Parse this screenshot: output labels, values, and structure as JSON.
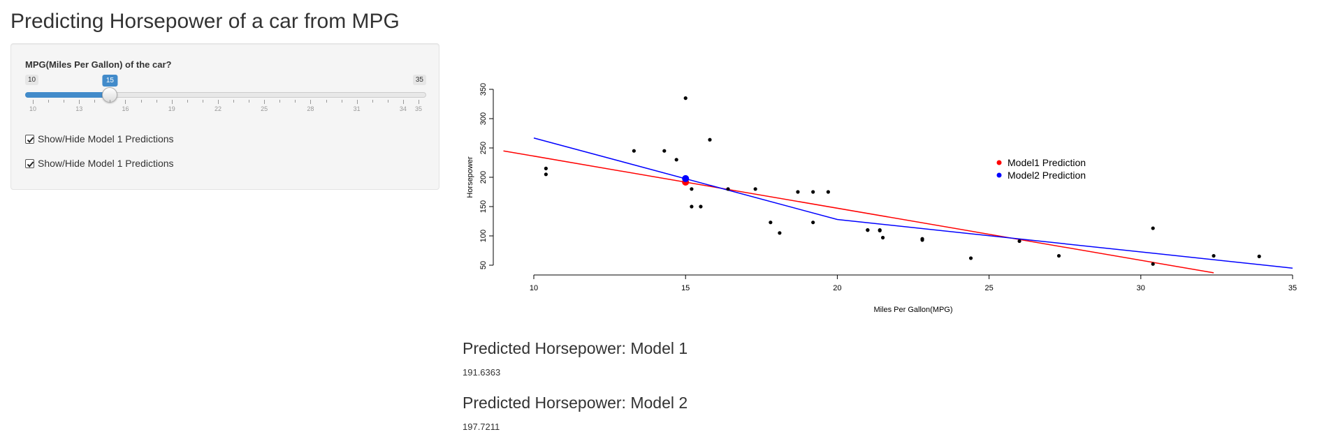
{
  "page": {
    "title": "Predicting Horsepower of a car from MPG"
  },
  "sidebar": {
    "slider": {
      "label": "MPG(Miles Per Gallon) of the car?",
      "min": 10,
      "max": 35,
      "value": 15,
      "min_label": "10",
      "max_label": "35",
      "value_label": "15",
      "tick_labels": [
        "10",
        "13",
        "16",
        "19",
        "22",
        "25",
        "28",
        "31",
        "34",
        "35"
      ],
      "accent_color": "#428bca"
    },
    "checkboxes": [
      {
        "label": "Show/Hide Model 1 Predictions",
        "checked": true
      },
      {
        "label": "Show/Hide Model 1 Predictions",
        "checked": true
      }
    ]
  },
  "chart_data": {
    "type": "scatter",
    "xlabel": "Miles Per Gallon(MPG)",
    "ylabel": "Horsepower",
    "xlim": [
      10,
      35
    ],
    "ylim": [
      50,
      350
    ],
    "x_ticks": [
      10,
      15,
      20,
      25,
      30,
      35
    ],
    "y_ticks": [
      50,
      100,
      150,
      200,
      250,
      300,
      350
    ],
    "points": [
      [
        21.0,
        110
      ],
      [
        21.0,
        110
      ],
      [
        22.8,
        93
      ],
      [
        21.4,
        110
      ],
      [
        18.7,
        175
      ],
      [
        18.1,
        105
      ],
      [
        14.3,
        245
      ],
      [
        24.4,
        62
      ],
      [
        22.8,
        95
      ],
      [
        19.2,
        123
      ],
      [
        17.8,
        123
      ],
      [
        16.4,
        180
      ],
      [
        17.3,
        180
      ],
      [
        15.2,
        180
      ],
      [
        10.4,
        205
      ],
      [
        10.4,
        215
      ],
      [
        14.7,
        230
      ],
      [
        32.4,
        66
      ],
      [
        30.4,
        52
      ],
      [
        33.9,
        65
      ],
      [
        21.5,
        97
      ],
      [
        15.5,
        150
      ],
      [
        15.2,
        150
      ],
      [
        13.3,
        245
      ],
      [
        19.2,
        175
      ],
      [
        27.3,
        66
      ],
      [
        26.0,
        91
      ],
      [
        30.4,
        113
      ],
      [
        15.8,
        264
      ],
      [
        19.7,
        175
      ],
      [
        15.0,
        335
      ],
      [
        21.4,
        109
      ]
    ],
    "series": [
      {
        "color": "#ff0000",
        "x": [
          9.0,
          32.4
        ],
        "y": [
          245.0,
          37.0
        ]
      },
      {
        "color": "#0000ff",
        "x": [
          10,
          20,
          35
        ],
        "y": [
          267.0,
          128.0,
          45.0
        ]
      }
    ],
    "predictions": [
      {
        "color": "#ff0000",
        "x": 15,
        "y": 191.6363
      },
      {
        "color": "#0000ff",
        "x": 15,
        "y": 197.7211
      }
    ],
    "legend": {
      "position": "right",
      "entries": [
        {
          "label": "Model1 Prediction",
          "color": "#ff0000"
        },
        {
          "label": "Model2 Prediction",
          "color": "#0000ff"
        }
      ]
    }
  },
  "outputs": [
    {
      "title": "Predicted Horsepower: Model 1",
      "value": "191.6363"
    },
    {
      "title": "Predicted Horsepower: Model 2",
      "value": "197.7211"
    }
  ]
}
